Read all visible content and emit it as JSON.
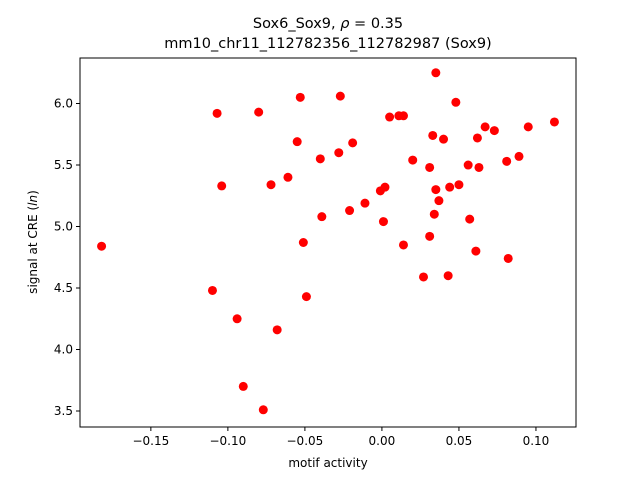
{
  "chart_data": {
    "type": "scatter",
    "title_line1_prefix": "Sox6_Sox9, ",
    "title_line1_rho_symbol": "ρ",
    "title_line1_rho_value": " = 0.35",
    "title_line2": "mm10_chr11_112782356_112782987 (Sox9)",
    "xlabel": "motif activity",
    "ylabel_prefix": "signal at CRE (",
    "ylabel_italic": "ln",
    "ylabel_suffix": ")",
    "xlim": [
      -0.196,
      0.126
    ],
    "ylim": [
      3.37,
      6.37
    ],
    "xticks": [
      -0.15,
      -0.1,
      -0.05,
      0.0,
      0.05,
      0.1
    ],
    "xtick_labels": [
      "−0.15",
      "−0.10",
      "−0.05",
      "0.00",
      "0.05",
      "0.10"
    ],
    "yticks": [
      3.5,
      4.0,
      4.5,
      5.0,
      5.5,
      6.0
    ],
    "ytick_labels": [
      "3.5",
      "4.0",
      "4.5",
      "5.0",
      "5.5",
      "6.0"
    ],
    "marker_color": "#ff0000",
    "points": [
      {
        "x": -0.182,
        "y": 4.84
      },
      {
        "x": -0.11,
        "y": 4.48
      },
      {
        "x": -0.107,
        "y": 5.92
      },
      {
        "x": -0.104,
        "y": 5.33
      },
      {
        "x": -0.094,
        "y": 4.25
      },
      {
        "x": -0.09,
        "y": 3.7
      },
      {
        "x": -0.08,
        "y": 5.93
      },
      {
        "x": -0.077,
        "y": 3.51
      },
      {
        "x": -0.072,
        "y": 5.34
      },
      {
        "x": -0.068,
        "y": 4.16
      },
      {
        "x": -0.061,
        "y": 5.4
      },
      {
        "x": -0.055,
        "y": 5.69
      },
      {
        "x": -0.053,
        "y": 6.05
      },
      {
        "x": -0.051,
        "y": 4.87
      },
      {
        "x": -0.049,
        "y": 4.43
      },
      {
        "x": -0.04,
        "y": 5.55
      },
      {
        "x": -0.039,
        "y": 5.08
      },
      {
        "x": -0.028,
        "y": 5.6
      },
      {
        "x": -0.027,
        "y": 6.06
      },
      {
        "x": -0.021,
        "y": 5.13
      },
      {
        "x": -0.019,
        "y": 5.68
      },
      {
        "x": -0.011,
        "y": 5.19
      },
      {
        "x": -0.001,
        "y": 5.29
      },
      {
        "x": 0.001,
        "y": 5.04
      },
      {
        "x": 0.002,
        "y": 5.32
      },
      {
        "x": 0.005,
        "y": 5.89
      },
      {
        "x": 0.011,
        "y": 5.9
      },
      {
        "x": 0.014,
        "y": 5.9
      },
      {
        "x": 0.014,
        "y": 4.85
      },
      {
        "x": 0.02,
        "y": 5.54
      },
      {
        "x": 0.027,
        "y": 4.59
      },
      {
        "x": 0.031,
        "y": 5.48
      },
      {
        "x": 0.031,
        "y": 4.92
      },
      {
        "x": 0.033,
        "y": 5.74
      },
      {
        "x": 0.034,
        "y": 5.1
      },
      {
        "x": 0.035,
        "y": 5.3
      },
      {
        "x": 0.035,
        "y": 6.25
      },
      {
        "x": 0.037,
        "y": 5.21
      },
      {
        "x": 0.04,
        "y": 5.71
      },
      {
        "x": 0.043,
        "y": 4.6
      },
      {
        "x": 0.044,
        "y": 5.32
      },
      {
        "x": 0.048,
        "y": 6.01
      },
      {
        "x": 0.05,
        "y": 5.34
      },
      {
        "x": 0.056,
        "y": 5.5
      },
      {
        "x": 0.057,
        "y": 5.06
      },
      {
        "x": 0.061,
        "y": 4.8
      },
      {
        "x": 0.062,
        "y": 5.72
      },
      {
        "x": 0.063,
        "y": 5.48
      },
      {
        "x": 0.067,
        "y": 5.81
      },
      {
        "x": 0.073,
        "y": 5.78
      },
      {
        "x": 0.081,
        "y": 5.53
      },
      {
        "x": 0.082,
        "y": 4.74
      },
      {
        "x": 0.089,
        "y": 5.57
      },
      {
        "x": 0.095,
        "y": 5.81
      },
      {
        "x": 0.112,
        "y": 5.85
      }
    ]
  }
}
